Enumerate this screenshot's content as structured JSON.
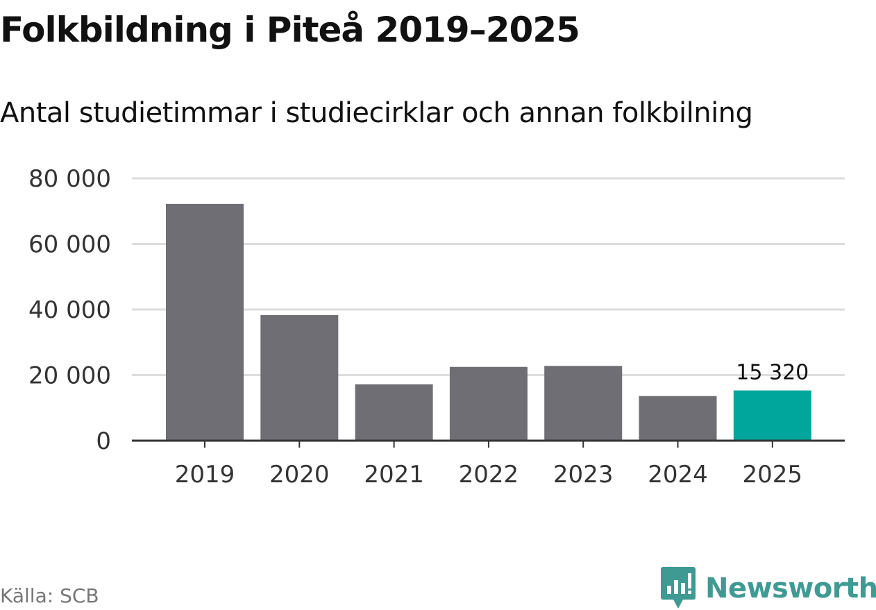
{
  "header": {
    "title": "Folkbildning i Piteå 2019–2025",
    "subtitle": "Antal studietimmar i studiecirklar och annan folkbilning"
  },
  "footer": {
    "source": "Källa: SCB",
    "brand": "Newsworthy"
  },
  "colors": {
    "bar": "#6f6e74",
    "highlight": "#00a59b",
    "grid": "#dddddd",
    "axis": "#333333",
    "brand": "#3f9a93"
  },
  "chart_data": {
    "type": "bar",
    "title": "Folkbildning i Piteå 2019–2025",
    "subtitle": "Antal studietimmar i studiecirklar och annan folkbilning",
    "xlabel": "",
    "ylabel": "",
    "categories": [
      "2019",
      "2020",
      "2021",
      "2022",
      "2023",
      "2024",
      "2025"
    ],
    "values": [
      72200,
      38300,
      17200,
      22500,
      22800,
      13600,
      15320
    ],
    "ylim": [
      0,
      80000
    ],
    "yticks": [
      0,
      20000,
      40000,
      60000,
      80000
    ],
    "ytick_labels": [
      "0",
      "20 000",
      "40 000",
      "60 000",
      "80 000"
    ],
    "grid": true,
    "highlight_index": 6,
    "data_labels": [
      {
        "index": 6,
        "text": "15 320"
      }
    ],
    "source": "Källa: SCB"
  }
}
